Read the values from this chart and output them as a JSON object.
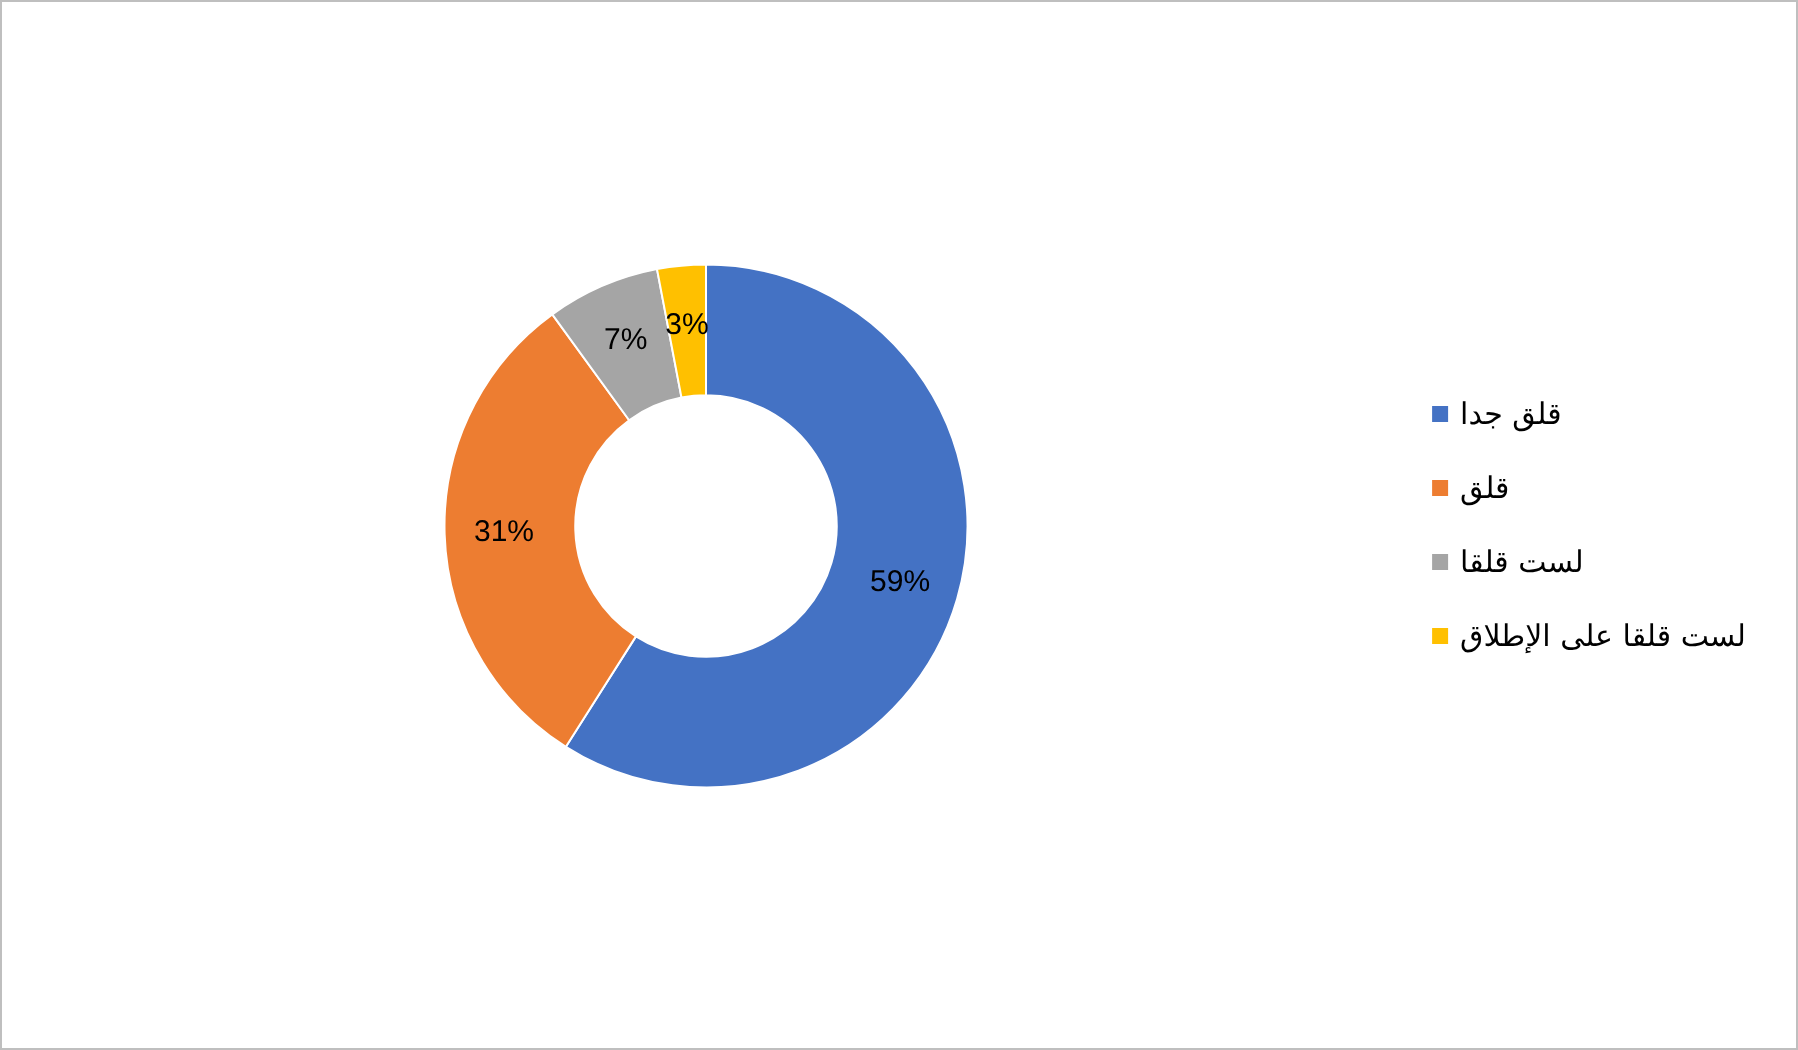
{
  "chart_data": {
    "type": "donut",
    "categories": [
      "قلق جدا",
      "قلق",
      "لست قلقا",
      "لست قلقا على الإطلاق"
    ],
    "values": [
      59,
      31,
      7,
      3
    ],
    "colors": [
      "#4472c4",
      "#ed7d31",
      "#a5a5a5",
      "#ffc000"
    ],
    "value_labels": [
      "59%",
      "31%",
      "7%",
      "3%"
    ],
    "legend": "right"
  }
}
